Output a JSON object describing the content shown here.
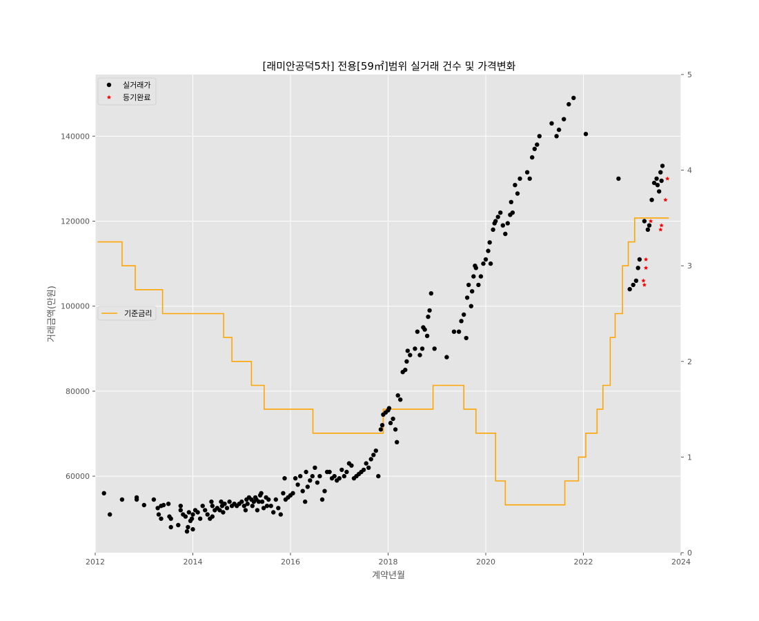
{
  "chart_data": {
    "type": "scatter",
    "title": "[래미안공덕5차] 전용[59㎡]범위 실거래 건수 및 가격변화",
    "xlabel": "계약년월",
    "ylabel": "거래금액(만원)",
    "y2label": "",
    "xlim": [
      2012,
      2024
    ],
    "ylim": [
      42000,
      154500
    ],
    "y2lim": [
      0,
      5
    ],
    "xticks": [
      2012,
      2014,
      2016,
      2018,
      2020,
      2022,
      2024
    ],
    "yticks": [
      60000,
      80000,
      100000,
      120000,
      140000
    ],
    "y2ticks": [
      0,
      1,
      2,
      3,
      4,
      5
    ],
    "grid": true,
    "legends": [
      {
        "placement": "upper-left",
        "entries": [
          {
            "label": "실거래가",
            "marker": "circle",
            "color": "#000000"
          },
          {
            "label": "등기완료",
            "marker": "star",
            "color": "#ff0000"
          }
        ]
      },
      {
        "placement": "center-left",
        "entries": [
          {
            "label": "기준금리",
            "marker": "line",
            "color": "#ffa500"
          }
        ]
      }
    ],
    "colors": {
      "background": "#e5e5e5",
      "grid": "#ffffff",
      "transactions": "#000000",
      "registered": "#ff0000",
      "base_rate": "#ffa500"
    },
    "series": [
      {
        "name": "실거래가",
        "axis": "left",
        "marker": "circle",
        "points": [
          [
            2012.18,
            56000
          ],
          [
            2012.3,
            51000
          ],
          [
            2012.55,
            54500
          ],
          [
            2012.85,
            54500
          ],
          [
            2012.85,
            55000
          ],
          [
            2013.0,
            53200
          ],
          [
            2013.2,
            54500
          ],
          [
            2013.28,
            52500
          ],
          [
            2013.3,
            51000
          ],
          [
            2013.35,
            50000
          ],
          [
            2013.35,
            53000
          ],
          [
            2013.4,
            53200
          ],
          [
            2013.5,
            53500
          ],
          [
            2013.52,
            50500
          ],
          [
            2013.55,
            50000
          ],
          [
            2013.55,
            48000
          ],
          [
            2013.7,
            48500
          ],
          [
            2013.75,
            52000
          ],
          [
            2013.75,
            53000
          ],
          [
            2013.8,
            51000
          ],
          [
            2013.85,
            50500
          ],
          [
            2013.88,
            47000
          ],
          [
            2013.9,
            48000
          ],
          [
            2013.92,
            51500
          ],
          [
            2013.95,
            49500
          ],
          [
            2013.98,
            50000
          ],
          [
            2014.0,
            47500
          ],
          [
            2014.0,
            51000
          ],
          [
            2014.05,
            52000
          ],
          [
            2014.1,
            51500
          ],
          [
            2014.15,
            50000
          ],
          [
            2014.2,
            53000
          ],
          [
            2014.25,
            52000
          ],
          [
            2014.3,
            51000
          ],
          [
            2014.35,
            50000
          ],
          [
            2014.38,
            54000
          ],
          [
            2014.4,
            50500
          ],
          [
            2014.4,
            53000
          ],
          [
            2014.45,
            52000
          ],
          [
            2014.5,
            52500
          ],
          [
            2014.55,
            52000
          ],
          [
            2014.58,
            54000
          ],
          [
            2014.6,
            53000
          ],
          [
            2014.62,
            51500
          ],
          [
            2014.65,
            53500
          ],
          [
            2014.7,
            52500
          ],
          [
            2014.75,
            54000
          ],
          [
            2014.8,
            53000
          ],
          [
            2014.85,
            53500
          ],
          [
            2014.9,
            53000
          ],
          [
            2014.95,
            53500
          ],
          [
            2015.0,
            54000
          ],
          [
            2015.05,
            53000
          ],
          [
            2015.08,
            52000
          ],
          [
            2015.1,
            54500
          ],
          [
            2015.12,
            53500
          ],
          [
            2015.15,
            55000
          ],
          [
            2015.2,
            54500
          ],
          [
            2015.22,
            53000
          ],
          [
            2015.25,
            54000
          ],
          [
            2015.28,
            55000
          ],
          [
            2015.3,
            54500
          ],
          [
            2015.32,
            52000
          ],
          [
            2015.35,
            54000
          ],
          [
            2015.38,
            55500
          ],
          [
            2015.4,
            56000
          ],
          [
            2015.42,
            54000
          ],
          [
            2015.45,
            52500
          ],
          [
            2015.5,
            55000
          ],
          [
            2015.52,
            53000
          ],
          [
            2015.55,
            54500
          ],
          [
            2015.6,
            53000
          ],
          [
            2015.65,
            51500
          ],
          [
            2015.7,
            54500
          ],
          [
            2015.75,
            52500
          ],
          [
            2015.8,
            51000
          ],
          [
            2015.85,
            56000
          ],
          [
            2015.88,
            59500
          ],
          [
            2015.9,
            54500
          ],
          [
            2015.95,
            55000
          ],
          [
            2016.0,
            55500
          ],
          [
            2016.05,
            56000
          ],
          [
            2016.1,
            59500
          ],
          [
            2016.15,
            58000
          ],
          [
            2016.2,
            60000
          ],
          [
            2016.25,
            56500
          ],
          [
            2016.3,
            54000
          ],
          [
            2016.32,
            61000
          ],
          [
            2016.35,
            57500
          ],
          [
            2016.4,
            59000
          ],
          [
            2016.45,
            60000
          ],
          [
            2016.5,
            62000
          ],
          [
            2016.55,
            58500
          ],
          [
            2016.6,
            60000
          ],
          [
            2016.65,
            54500
          ],
          [
            2016.7,
            56500
          ],
          [
            2016.75,
            61000
          ],
          [
            2016.8,
            61000
          ],
          [
            2016.85,
            59500
          ],
          [
            2016.9,
            60000
          ],
          [
            2016.95,
            59000
          ],
          [
            2017.0,
            59500
          ],
          [
            2017.05,
            61500
          ],
          [
            2017.1,
            60000
          ],
          [
            2017.15,
            61000
          ],
          [
            2017.2,
            63000
          ],
          [
            2017.25,
            62500
          ],
          [
            2017.3,
            59500
          ],
          [
            2017.35,
            60000
          ],
          [
            2017.4,
            60500
          ],
          [
            2017.45,
            61000
          ],
          [
            2017.5,
            61500
          ],
          [
            2017.55,
            63000
          ],
          [
            2017.6,
            62000
          ],
          [
            2017.65,
            64000
          ],
          [
            2017.7,
            65000
          ],
          [
            2017.75,
            66000
          ],
          [
            2017.8,
            60000
          ],
          [
            2017.85,
            71000
          ],
          [
            2017.88,
            72000
          ],
          [
            2017.9,
            74500
          ],
          [
            2017.95,
            75000
          ],
          [
            2018.0,
            75500
          ],
          [
            2018.02,
            76000
          ],
          [
            2018.05,
            72500
          ],
          [
            2018.1,
            73500
          ],
          [
            2018.15,
            71000
          ],
          [
            2018.18,
            68000
          ],
          [
            2018.2,
            79000
          ],
          [
            2018.25,
            78000
          ],
          [
            2018.3,
            84500
          ],
          [
            2018.35,
            85000
          ],
          [
            2018.38,
            87000
          ],
          [
            2018.4,
            89500
          ],
          [
            2018.45,
            88500
          ],
          [
            2018.55,
            90000
          ],
          [
            2018.6,
            94000
          ],
          [
            2018.65,
            88500
          ],
          [
            2018.7,
            90000
          ],
          [
            2018.72,
            95000
          ],
          [
            2018.75,
            94500
          ],
          [
            2018.8,
            93000
          ],
          [
            2018.82,
            97500
          ],
          [
            2018.85,
            99000
          ],
          [
            2018.88,
            103000
          ],
          [
            2018.95,
            90000
          ],
          [
            2019.2,
            88000
          ],
          [
            2019.35,
            94000
          ],
          [
            2019.45,
            94000
          ],
          [
            2019.5,
            96500
          ],
          [
            2019.55,
            98000
          ],
          [
            2019.6,
            92500
          ],
          [
            2019.62,
            102000
          ],
          [
            2019.65,
            105000
          ],
          [
            2019.7,
            100000
          ],
          [
            2019.72,
            103500
          ],
          [
            2019.75,
            107000
          ],
          [
            2019.78,
            109500
          ],
          [
            2019.8,
            109000
          ],
          [
            2019.85,
            105000
          ],
          [
            2019.9,
            107000
          ],
          [
            2019.95,
            110000
          ],
          [
            2020.0,
            111000
          ],
          [
            2020.05,
            113000
          ],
          [
            2020.08,
            115000
          ],
          [
            2020.1,
            110000
          ],
          [
            2020.15,
            118000
          ],
          [
            2020.18,
            119500
          ],
          [
            2020.2,
            120000
          ],
          [
            2020.25,
            121000
          ],
          [
            2020.3,
            122000
          ],
          [
            2020.35,
            119000
          ],
          [
            2020.4,
            117000
          ],
          [
            2020.45,
            119500
          ],
          [
            2020.5,
            121500
          ],
          [
            2020.52,
            124500
          ],
          [
            2020.55,
            122000
          ],
          [
            2020.6,
            128500
          ],
          [
            2020.65,
            126500
          ],
          [
            2020.7,
            130000
          ],
          [
            2020.85,
            131500
          ],
          [
            2020.9,
            130000
          ],
          [
            2020.95,
            135000
          ],
          [
            2021.0,
            137000
          ],
          [
            2021.05,
            138000
          ],
          [
            2021.1,
            140000
          ],
          [
            2021.35,
            143000
          ],
          [
            2021.45,
            140000
          ],
          [
            2021.5,
            141500
          ],
          [
            2021.6,
            144000
          ],
          [
            2021.7,
            147500
          ],
          [
            2021.8,
            149000
          ],
          [
            2022.05,
            140500
          ],
          [
            2022.72,
            130000
          ],
          [
            2022.95,
            104000
          ],
          [
            2023.02,
            105000
          ],
          [
            2023.08,
            106000
          ],
          [
            2023.12,
            109000
          ],
          [
            2023.15,
            111000
          ],
          [
            2023.25,
            120000
          ],
          [
            2023.32,
            118000
          ],
          [
            2023.35,
            119000
          ],
          [
            2023.4,
            125000
          ],
          [
            2023.45,
            129000
          ],
          [
            2023.5,
            130000
          ],
          [
            2023.52,
            128500
          ],
          [
            2023.55,
            127000
          ],
          [
            2023.58,
            131500
          ],
          [
            2023.6,
            129500
          ],
          [
            2023.62,
            133000
          ]
        ]
      },
      {
        "name": "등기완료",
        "axis": "left",
        "marker": "star",
        "points": [
          [
            2023.23,
            106000
          ],
          [
            2023.25,
            105000
          ],
          [
            2023.28,
            111000
          ],
          [
            2023.28,
            109000
          ],
          [
            2023.38,
            120000
          ],
          [
            2023.58,
            118000
          ],
          [
            2023.6,
            119000
          ],
          [
            2023.68,
            125000
          ],
          [
            2023.72,
            130000
          ]
        ]
      },
      {
        "name": "기준금리",
        "axis": "right",
        "style": "step",
        "points": [
          [
            2012.05,
            3.25
          ],
          [
            2012.55,
            3.0
          ],
          [
            2012.82,
            2.75
          ],
          [
            2013.38,
            2.5
          ],
          [
            2014.63,
            2.25
          ],
          [
            2014.8,
            2.0
          ],
          [
            2015.2,
            1.75
          ],
          [
            2015.46,
            1.5
          ],
          [
            2016.46,
            1.25
          ],
          [
            2017.9,
            1.5
          ],
          [
            2018.92,
            1.75
          ],
          [
            2019.55,
            1.5
          ],
          [
            2019.8,
            1.25
          ],
          [
            2020.2,
            0.75
          ],
          [
            2020.4,
            0.5
          ],
          [
            2021.62,
            0.75
          ],
          [
            2021.9,
            1.0
          ],
          [
            2022.05,
            1.25
          ],
          [
            2022.28,
            1.5
          ],
          [
            2022.4,
            1.75
          ],
          [
            2022.55,
            2.25
          ],
          [
            2022.65,
            2.5
          ],
          [
            2022.8,
            3.0
          ],
          [
            2022.92,
            3.25
          ],
          [
            2023.05,
            3.5
          ],
          [
            2023.75,
            3.5
          ]
        ]
      }
    ]
  }
}
